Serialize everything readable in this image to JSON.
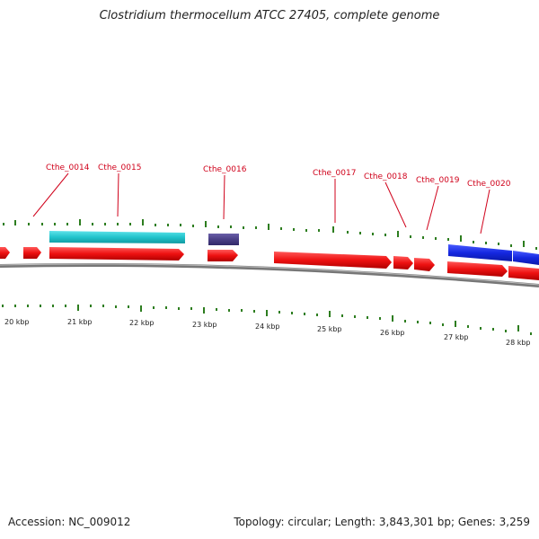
{
  "title": "Clostridium thermocellum ATCC 27405, complete genome",
  "footer": {
    "accession": "Accession: NC_009012",
    "stats": "Topology: circular; Length: 3,843,301 bp; Genes: 3,259"
  },
  "colors": {
    "gene": "#ee1111",
    "highlight_cyan": "#22c4cc",
    "highlight_purple": "#4a3f86",
    "highlight_blue": "#1528e0",
    "label": "#d0021b",
    "tick": "#2d7d1f",
    "backbone": "#888888"
  },
  "genes": [
    "Cthe_0014",
    "Cthe_0015",
    "Cthe_0016",
    "Cthe_0017",
    "Cthe_0018",
    "Cthe_0019",
    "Cthe_0020"
  ],
  "kbp_labels": [
    "20 kbp",
    "21 kbp",
    "22 kbp",
    "23 kbp",
    "24 kbp",
    "25 kbp",
    "26 kbp",
    "27 kbp",
    "28 kbp"
  ]
}
